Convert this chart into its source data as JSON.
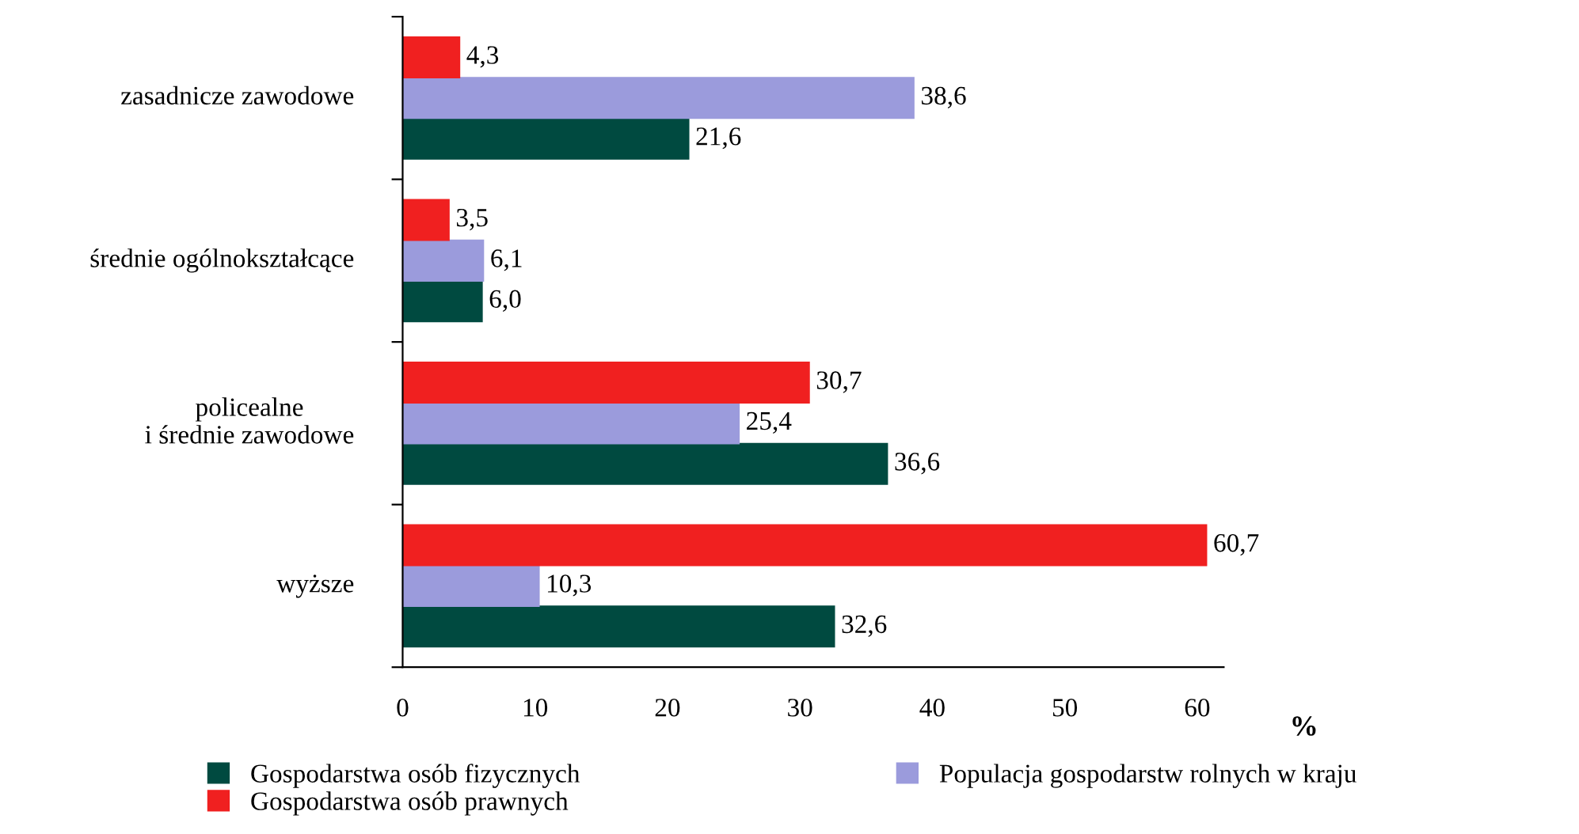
{
  "chart_data": {
    "type": "bar",
    "orientation": "horizontal",
    "xlabel": "%",
    "categories": [
      "zasadnicze zawodowe",
      "średnie ogólnokształcące",
      "policealne\ni średnie zawodowe",
      "wyższe"
    ],
    "series": [
      {
        "name": "Gospodarstwa osób fizycznych",
        "color": "#004a40",
        "values": [
          21.6,
          6.0,
          36.6,
          32.6
        ],
        "value_labels": [
          "21,6",
          "6,0",
          "36,6",
          "32,6"
        ]
      },
      {
        "name": "Populacja gospodarstw rolnych w kraju",
        "color": "#9b9bdc",
        "values": [
          38.6,
          6.1,
          25.4,
          10.3
        ],
        "value_labels": [
          "38,6",
          "6,1",
          "25,4",
          "10,3"
        ]
      },
      {
        "name": "Gospodarstwa osób prawnych",
        "color": "#f02020",
        "values": [
          4.3,
          3.5,
          30.7,
          60.7
        ],
        "value_labels": [
          "4,3",
          "3,5",
          "30,7",
          "60,7"
        ]
      }
    ],
    "xlim": [
      0,
      62
    ],
    "xticks": [
      0,
      10,
      20,
      30,
      40,
      50,
      60
    ],
    "grid": false,
    "legend": "bottom"
  }
}
